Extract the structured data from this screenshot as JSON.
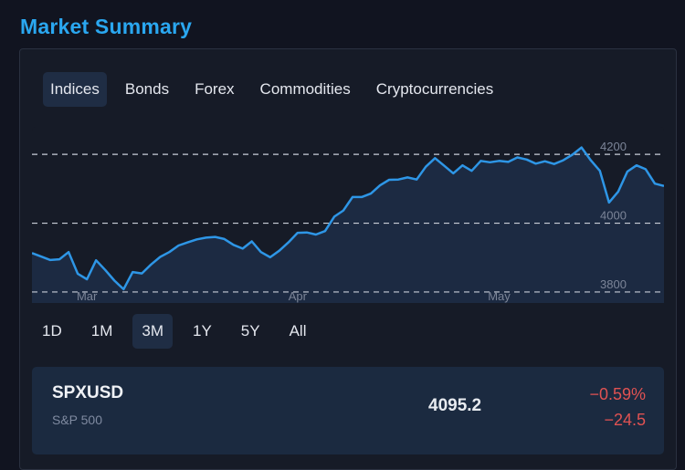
{
  "header": {
    "title": "Market Summary"
  },
  "tabs": [
    {
      "label": "Indices",
      "active": true
    },
    {
      "label": "Bonds",
      "active": false
    },
    {
      "label": "Forex",
      "active": false
    },
    {
      "label": "Commodities",
      "active": false
    },
    {
      "label": "Cryptocurrencies",
      "active": false
    }
  ],
  "ranges": [
    {
      "label": "1D",
      "active": false
    },
    {
      "label": "1M",
      "active": false
    },
    {
      "label": "3M",
      "active": true
    },
    {
      "label": "1Y",
      "active": false
    },
    {
      "label": "5Y",
      "active": false
    },
    {
      "label": "All",
      "active": false
    }
  ],
  "chart_data": {
    "type": "area",
    "y_ticks": [
      "4200",
      "4000",
      "3800"
    ],
    "y_tick_values": [
      4200,
      4000,
      3800
    ],
    "x_labels": [
      "Mar",
      "Apr",
      "May"
    ],
    "x_label_index": [
      6,
      29,
      51
    ],
    "ylim": [
      3760,
      4280
    ],
    "grid": "dashed-horizontal",
    "values": [
      3913,
      3903,
      3893,
      3895,
      3916,
      3853,
      3837,
      3892,
      3864,
      3833,
      3808,
      3858,
      3854,
      3880,
      3902,
      3916,
      3935,
      3944,
      3953,
      3958,
      3960,
      3954,
      3937,
      3926,
      3947,
      3916,
      3901,
      3920,
      3944,
      3972,
      3973,
      3967,
      3977,
      4019,
      4037,
      4076,
      4076,
      4086,
      4110,
      4126,
      4127,
      4133,
      4127,
      4164,
      4189,
      4167,
      4145,
      4168,
      4152,
      4181,
      4177,
      4181,
      4178,
      4191,
      4185,
      4173,
      4180,
      4172,
      4183,
      4199,
      4220,
      4183,
      4152,
      4060,
      4092,
      4150,
      4168,
      4157,
      4115,
      4108
    ],
    "line_color": "#2e96e6",
    "fill_color": "#1c2a42"
  },
  "quote": {
    "symbol": "SPXUSD",
    "name": "S&P 500",
    "price": "4095.2",
    "change_pct": "−0.59%",
    "change_abs": "−24.5",
    "change_color": "#e05252"
  }
}
